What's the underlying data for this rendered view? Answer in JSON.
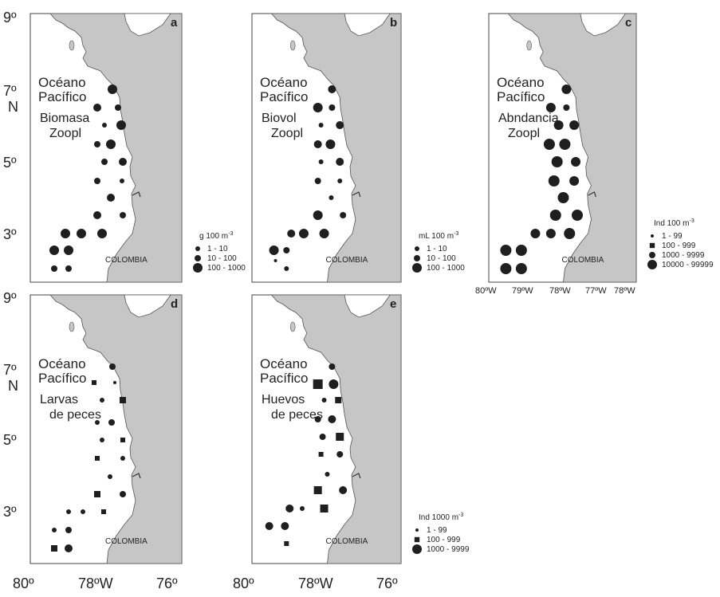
{
  "figure": {
    "left_axis_lat_ticks": [
      "9º",
      "7º",
      "5º",
      "3º"
    ],
    "left_axis_unit": "N",
    "bottom_axis_lon_ticks": [
      "80º",
      "78ºW",
      "76º"
    ],
    "panel_c_lon_ticks": [
      "80ºW",
      "79ºW",
      "78ºW",
      "77ºW",
      "78ºW"
    ],
    "land_color": "#c6c6c6",
    "ocean_color": "#ffffff",
    "station_color": "#1f1f1f"
  },
  "panels": [
    {
      "id": "a",
      "letter": "a",
      "ocean": [
        "Océano",
        "Pacífico"
      ],
      "variable": [
        "Biomasa",
        "Zoopl"
      ],
      "country": "COLOMBIA",
      "legend": {
        "title": "g 100 m",
        "superscript": "-3",
        "items": [
          {
            "label": "1  -  10",
            "symbol": "small-circle"
          },
          {
            "label": "10  -  100",
            "symbol": "medium-circle"
          },
          {
            "label": "100  -  1000",
            "symbol": "large-circle"
          }
        ]
      }
    },
    {
      "id": "b",
      "letter": "b",
      "ocean": [
        "Océano",
        "Pacífico"
      ],
      "variable": [
        "Biovol",
        "Zoopl"
      ],
      "country": "COLOMBIA",
      "legend": {
        "title": "mL 100 m",
        "superscript": "-3",
        "items": [
          {
            "label": "1  -  10",
            "symbol": "small-circle"
          },
          {
            "label": "10  -  100",
            "symbol": "medium-circle"
          },
          {
            "label": "100  -  1000",
            "symbol": "large-circle"
          }
        ]
      }
    },
    {
      "id": "c",
      "letter": "c",
      "ocean": [
        "Océano",
        "Pacífico"
      ],
      "variable": [
        "Abndancia",
        "Zoopl"
      ],
      "country": "COLOMBIA",
      "legend": {
        "title": "Ind 100 m",
        "superscript": "-3",
        "items": [
          {
            "label": "1  -  99",
            "symbol": "dot"
          },
          {
            "label": "100  -  999",
            "symbol": "square"
          },
          {
            "label": "1000  -  9999",
            "symbol": "medium-circle"
          },
          {
            "label": "10000  -  99999",
            "symbol": "large-circle"
          }
        ]
      }
    },
    {
      "id": "d",
      "letter": "d",
      "ocean": [
        "Océano",
        "Pacífico"
      ],
      "variable": [
        "Larvas",
        "de peces"
      ],
      "country": "COLOMBIA",
      "legend": null
    },
    {
      "id": "e",
      "letter": "e",
      "ocean": [
        "Océano",
        "Pacífico"
      ],
      "variable": [
        "Huevos",
        "de peces"
      ],
      "country": "COLOMBIA",
      "legend": {
        "title": "Ind 1000 m",
        "superscript": "-3",
        "items": [
          {
            "label": "1  -  99",
            "symbol": "dot"
          },
          {
            "label": "100  -  999",
            "symbol": "square"
          },
          {
            "label": "1000  -  9999",
            "symbol": "large-circle"
          }
        ]
      }
    }
  ]
}
